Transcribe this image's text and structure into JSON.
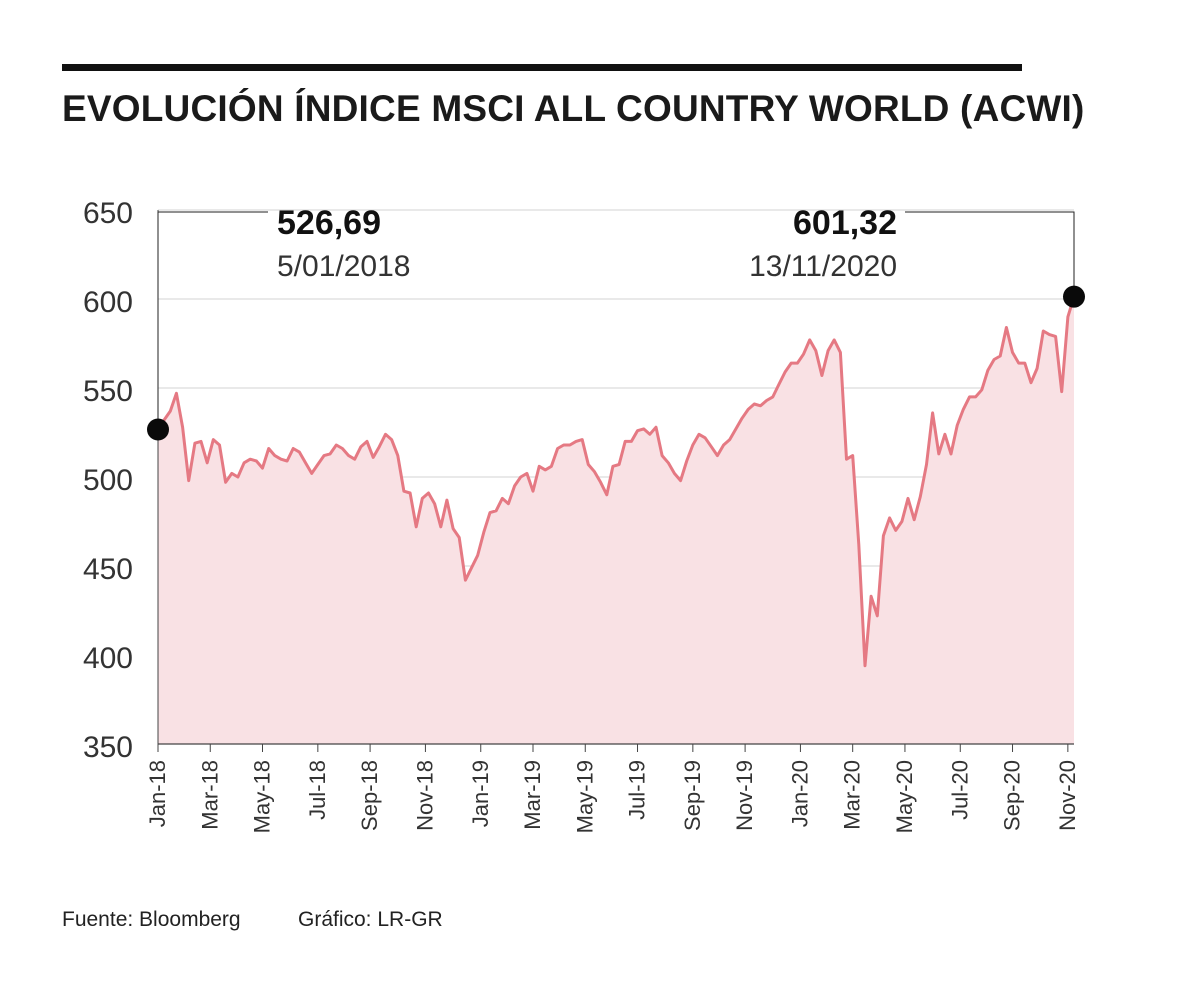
{
  "title": "EVOLUCIÓN ÍNDICE MSCI ALL COUNTRY WORLD (ACWI)",
  "footer": {
    "source": "Fuente: Bloomberg",
    "credit": "Gráfico: LR-GR"
  },
  "colors": {
    "line": "#e57983",
    "fill": "#f9e1e4",
    "grid": "#d3d3d3",
    "text": "#1a1a1a"
  },
  "chart_data": {
    "type": "area",
    "title": "EVOLUCIÓN ÍNDICE MSCI ALL COUNTRY WORLD (ACWI)",
    "xlabel": "",
    "ylabel": "",
    "ylim": [
      350,
      650
    ],
    "yticks": [
      350,
      400,
      450,
      500,
      550,
      600,
      650
    ],
    "xlim": [
      0,
      149
    ],
    "xticks": [
      {
        "label": "Jan-18",
        "x": 0
      },
      {
        "label": "Mar-18",
        "x": 8.5
      },
      {
        "label": "May-18",
        "x": 17
      },
      {
        "label": "Jul-18",
        "x": 26
      },
      {
        "label": "Sep-18",
        "x": 34.5
      },
      {
        "label": "Nov-18",
        "x": 43.5
      },
      {
        "label": "Jan-19",
        "x": 52.5
      },
      {
        "label": "Mar-19",
        "x": 61
      },
      {
        "label": "May-19",
        "x": 69.5
      },
      {
        "label": "Jul-19",
        "x": 78
      },
      {
        "label": "Sep-19",
        "x": 87
      },
      {
        "label": "Nov-19",
        "x": 95.5
      },
      {
        "label": "Jan-20",
        "x": 104.5
      },
      {
        "label": "Mar-20",
        "x": 113
      },
      {
        "label": "May-20",
        "x": 121.5
      },
      {
        "label": "Jul-20",
        "x": 130.5
      },
      {
        "label": "Sep-20",
        "x": 139
      },
      {
        "label": "Nov-20",
        "x": 148
      }
    ],
    "series": [
      {
        "name": "MSCI ACWI",
        "values": [
          526.69,
          532,
          537,
          547,
          528,
          498,
          519,
          520,
          508,
          521,
          518,
          497,
          502,
          500,
          508,
          510,
          509,
          505,
          516,
          512,
          510,
          509,
          516,
          514,
          508,
          502,
          507,
          512,
          513,
          518,
          516,
          512,
          510,
          517,
          520,
          511,
          517,
          524,
          521,
          512,
          492,
          491,
          472,
          488,
          491,
          485,
          472,
          487,
          471,
          466,
          442,
          449,
          456,
          469,
          480,
          481,
          488,
          485,
          495,
          500,
          502,
          492,
          506,
          504,
          506,
          516,
          518,
          518,
          520,
          521,
          507,
          503,
          497,
          490,
          506,
          507,
          520,
          520,
          526,
          527,
          524,
          528,
          512,
          508,
          502,
          498,
          509,
          518,
          524,
          522,
          517,
          512,
          518,
          521,
          527,
          533,
          538,
          541,
          540,
          543,
          545,
          552,
          559,
          564,
          564,
          569,
          577,
          571,
          557,
          571,
          577,
          570,
          510,
          512,
          462,
          394,
          433,
          422,
          467,
          477,
          470,
          475,
          488,
          476,
          489,
          507,
          536,
          513,
          524,
          513,
          529,
          538,
          545,
          545,
          549,
          560,
          566,
          568,
          584,
          570,
          564,
          564,
          553,
          561,
          582,
          580,
          579,
          548,
          590,
          601.32
        ]
      }
    ],
    "annotations": [
      {
        "value": "526,69",
        "date": "5/01/2018",
        "x": 0,
        "y": 526.69
      },
      {
        "value": "601,32",
        "date": "13/11/2020",
        "x": 149,
        "y": 601.32
      }
    ]
  }
}
